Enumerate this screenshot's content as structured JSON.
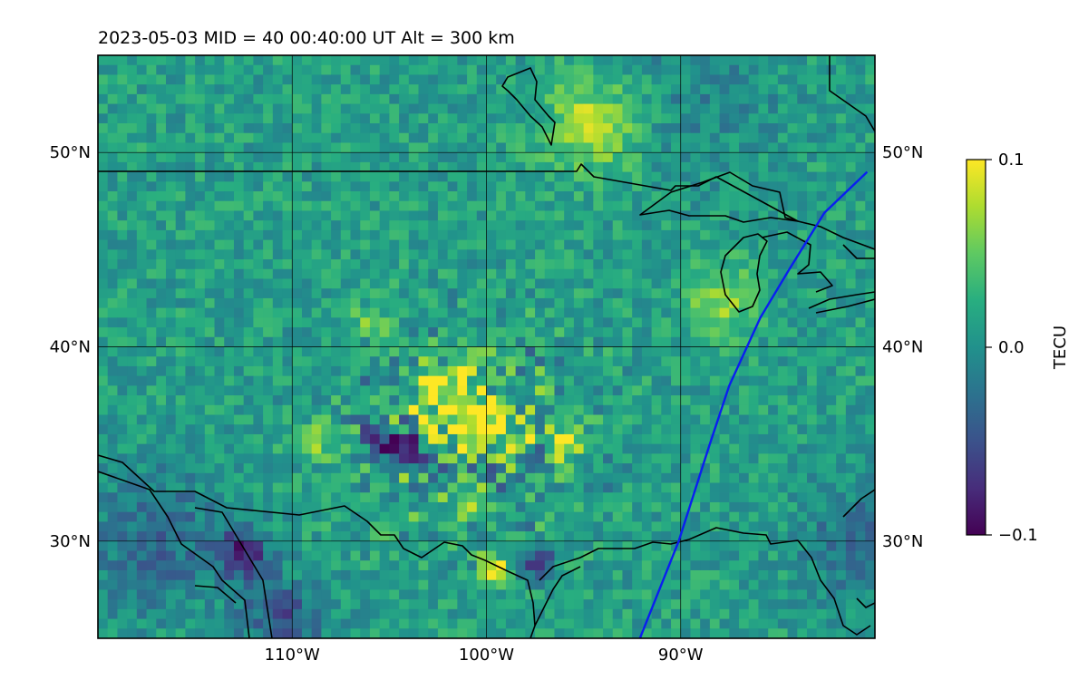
{
  "title": "2023-05-03  MID =  40    00:40:00  UT  Alt = 300 km",
  "map": {
    "lon_range": [
      -120,
      -80
    ],
    "lat_range": [
      25,
      55
    ],
    "lon_ticks": [
      {
        "value": -110,
        "label": "110°W"
      },
      {
        "value": -100,
        "label": "100°W"
      },
      {
        "value": -90,
        "label": "90°W"
      }
    ],
    "lat_ticks": [
      {
        "value": 30,
        "label": "30°N"
      },
      {
        "value": 40,
        "label": "40°N"
      },
      {
        "value": 50,
        "label": "50°N"
      }
    ],
    "gridlines": true,
    "track_color": "#0a1ef0",
    "track_points": [
      [
        -92.1,
        25.0
      ],
      [
        -90.1,
        30.0
      ],
      [
        -88.5,
        35.0
      ],
      [
        -87.5,
        38.0
      ],
      [
        -85.9,
        41.5
      ],
      [
        -84.4,
        44.0
      ],
      [
        -82.6,
        46.9
      ],
      [
        -80.4,
        49.0
      ]
    ]
  },
  "colorbar": {
    "label": "TECU",
    "colormap": "viridis",
    "min": -0.1,
    "max": 0.1,
    "ticks": [
      {
        "value": 0.1,
        "label": "0.1"
      },
      {
        "value": 0.0,
        "label": "0.0"
      },
      {
        "value": -0.1,
        "label": "−0.1"
      }
    ]
  },
  "chart_data": {
    "type": "heatmap",
    "title": "2023-05-03  MID =  40    00:40:00  UT  Alt = 300 km",
    "xlabel": "",
    "ylabel": "",
    "x_range_deg": [
      -120,
      -80
    ],
    "y_range_deg": [
      25,
      55
    ],
    "value_label": "TECU",
    "value_range": [
      -0.1,
      0.1
    ],
    "hotspots": [
      {
        "lon": -94.5,
        "lat": 51.5,
        "radius": 1.8,
        "value": 0.065
      },
      {
        "lon": -106.0,
        "lat": 41.3,
        "radius": 0.6,
        "value": 0.055
      },
      {
        "lon": -102.0,
        "lat": 37.0,
        "radius": 1.4,
        "value": 0.09
      },
      {
        "lon": -99.5,
        "lat": 36.3,
        "radius": 1.0,
        "value": 0.08
      },
      {
        "lon": -96.0,
        "lat": 35.0,
        "radius": 0.6,
        "value": 0.09
      },
      {
        "lon": -109.0,
        "lat": 35.2,
        "radius": 0.6,
        "value": 0.08
      },
      {
        "lon": -99.6,
        "lat": 28.5,
        "radius": 0.5,
        "value": 0.09
      },
      {
        "lon": -88.0,
        "lat": 42.5,
        "radius": 1.3,
        "value": 0.055
      },
      {
        "lon": -104.0,
        "lat": 35.0,
        "radius": 0.7,
        "value": -0.085
      },
      {
        "lon": -105.5,
        "lat": 35.2,
        "radius": 0.6,
        "value": -0.08
      },
      {
        "lon": -112.5,
        "lat": 29.4,
        "radius": 0.9,
        "value": -0.085
      },
      {
        "lon": -97.5,
        "lat": 28.9,
        "radius": 0.6,
        "value": -0.085
      },
      {
        "lon": -110.5,
        "lat": 26.0,
        "radius": 1.5,
        "value": -0.06
      },
      {
        "lon": -117.0,
        "lat": 30.0,
        "radius": 2.5,
        "value": -0.045
      },
      {
        "lon": -81.0,
        "lat": 30.0,
        "radius": 2.0,
        "value": -0.04
      },
      {
        "lon": -89.0,
        "lat": 53.0,
        "radius": 3.0,
        "value": -0.02
      }
    ]
  }
}
